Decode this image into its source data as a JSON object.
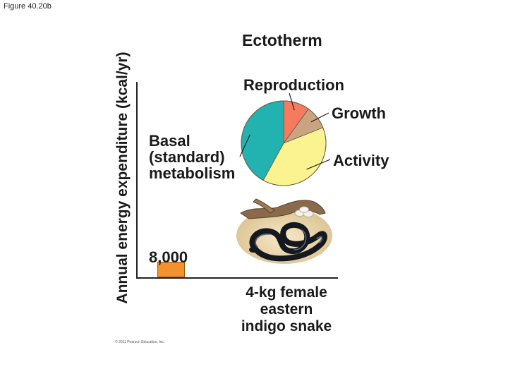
{
  "figure_label": "Figure 40.20b",
  "chart_data": {
    "type": "bar",
    "title": "Ectotherm",
    "ylabel": "Annual energy expenditure (kcal/yr)",
    "xlabel": "",
    "ylim": [
      0,
      100000
    ],
    "categories": [
      "4-kg female eastern indigo snake"
    ],
    "category_lines": [
      "4-kg female",
      "eastern",
      "indigo snake"
    ],
    "values": [
      8000
    ],
    "data_labels": [
      "8,000"
    ],
    "bar_color": "#f0922d",
    "breakdown": {
      "type": "pie",
      "slices": [
        {
          "label": "Reproduction",
          "share": 10,
          "color": "#f47a60"
        },
        {
          "label": "Growth",
          "share": 9,
          "color": "#c9a382"
        },
        {
          "label": "Activity",
          "share": 39,
          "color": "#fbf38f"
        },
        {
          "label": "Basal (standard) metabolism",
          "share": 42,
          "color": "#22b2b0"
        }
      ],
      "basal_lines": [
        "Basal",
        "(standard)",
        "metabolism"
      ]
    }
  },
  "copyright": "© 2011 Pearson Education, Inc."
}
